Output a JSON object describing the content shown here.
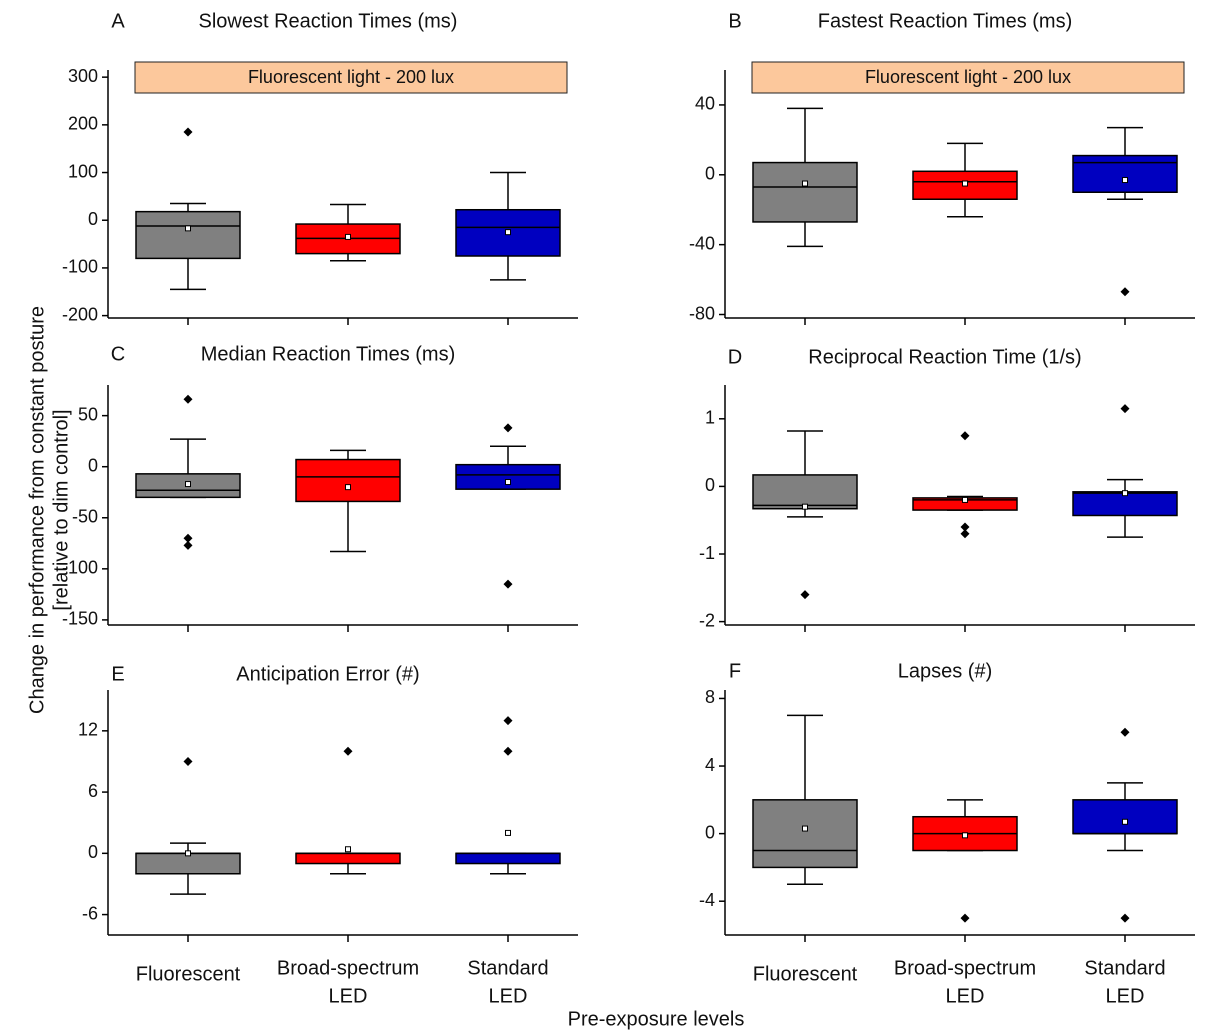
{
  "chart_data": [
    {
      "type": "box",
      "panel": "A",
      "title": "Slowest Reaction Times (ms)",
      "annotation": "Fluorescent light - 200 lux",
      "ylim": [
        -205,
        315
      ],
      "yticks": [
        300,
        200,
        100,
        0,
        -100,
        -200
      ],
      "boxes": [
        {
          "color": "#808080",
          "min": -145,
          "q1": -80,
          "median": -12,
          "q3": 18,
          "max": 35,
          "mean": -17,
          "outliers": [
            185
          ]
        },
        {
          "color": "#ff0000",
          "min": -85,
          "q1": -70,
          "median": -38,
          "q3": -8,
          "max": 33,
          "mean": -35,
          "outliers": []
        },
        {
          "color": "#0000c0",
          "min": -125,
          "q1": -75,
          "median": -15,
          "q3": 22,
          "max": 100,
          "mean": -25,
          "outliers": []
        }
      ]
    },
    {
      "type": "box",
      "panel": "B",
      "title": "Fastest Reaction Times (ms)",
      "annotation": "Fluorescent light - 200 lux",
      "ylim": [
        -82,
        60
      ],
      "yticks": [
        40,
        0,
        -40,
        -80
      ],
      "boxes": [
        {
          "color": "#808080",
          "min": -41,
          "q1": -27,
          "median": -7,
          "q3": 7,
          "max": 38,
          "mean": -5,
          "outliers": []
        },
        {
          "color": "#ff0000",
          "min": -24,
          "q1": -14,
          "median": -4,
          "q3": 2,
          "max": 18,
          "mean": -5,
          "outliers": []
        },
        {
          "color": "#0000c0",
          "min": -14,
          "q1": -10,
          "median": 7,
          "q3": 11,
          "max": 27,
          "mean": -3,
          "outliers": [
            -67
          ]
        }
      ]
    },
    {
      "type": "box",
      "panel": "C",
      "title": "Median Reaction Times (ms)",
      "ylim": [
        -155,
        80
      ],
      "yticks": [
        50,
        0,
        -50,
        -100,
        -150
      ],
      "boxes": [
        {
          "color": "#808080",
          "min": -30,
          "q1": -30,
          "median": -23,
          "q3": -7,
          "max": 27,
          "mean": -17,
          "outliers": [
            66,
            -70,
            -77
          ]
        },
        {
          "color": "#ff0000",
          "min": -83,
          "q1": -34,
          "median": -10,
          "q3": 7,
          "max": 16,
          "mean": -20,
          "outliers": []
        },
        {
          "color": "#0000c0",
          "min": -22,
          "q1": -22,
          "median": -8,
          "q3": 2,
          "max": 20,
          "mean": -15,
          "outliers": [
            38,
            -115
          ]
        }
      ]
    },
    {
      "type": "box",
      "panel": "D",
      "title": "Reciprocal Reaction Time (1/s)",
      "ylim": [
        -2.05,
        1.5
      ],
      "yticks": [
        1,
        0,
        -1,
        -2
      ],
      "boxes": [
        {
          "color": "#808080",
          "min": -0.45,
          "q1": -0.33,
          "median": -0.28,
          "q3": 0.17,
          "max": 0.82,
          "mean": -0.3,
          "outliers": [
            -1.6
          ]
        },
        {
          "color": "#ff0000",
          "min": -0.35,
          "q1": -0.35,
          "median": -0.2,
          "q3": -0.17,
          "max": -0.15,
          "mean": -0.2,
          "outliers": [
            0.75,
            -0.6,
            -0.7
          ]
        },
        {
          "color": "#0000c0",
          "min": -0.75,
          "q1": -0.43,
          "median": -0.1,
          "q3": -0.08,
          "max": 0.1,
          "mean": -0.1,
          "outliers": [
            1.15
          ]
        }
      ]
    },
    {
      "type": "box",
      "panel": "E",
      "title": "Anticipation Error (#)",
      "ylim": [
        -8,
        16
      ],
      "yticks": [
        12,
        6,
        0,
        -6
      ],
      "categories": [
        [
          "Fluorescent"
        ],
        [
          "Broad-spectrum",
          "LED"
        ],
        [
          "Standard",
          "LED"
        ]
      ],
      "boxes": [
        {
          "color": "#808080",
          "min": -4,
          "q1": -2,
          "median": 0,
          "q3": 0,
          "max": 1,
          "mean": 0,
          "outliers": [
            9
          ]
        },
        {
          "color": "#ff0000",
          "min": -2,
          "q1": -1,
          "median": 0,
          "q3": 0,
          "max": 0,
          "mean": 0.4,
          "outliers": [
            10
          ]
        },
        {
          "color": "#0000c0",
          "min": -2,
          "q1": -1,
          "median": 0,
          "q3": 0,
          "max": 0,
          "mean": 2,
          "outliers": [
            13,
            10
          ]
        }
      ]
    },
    {
      "type": "box",
      "panel": "F",
      "title": "Lapses (#)",
      "ylim": [
        -6,
        8.5
      ],
      "yticks": [
        8,
        4,
        0,
        -4
      ],
      "categories": [
        [
          "Fluorescent"
        ],
        [
          "Broad-spectrum",
          "LED"
        ],
        [
          "Standard",
          "LED"
        ]
      ],
      "boxes": [
        {
          "color": "#808080",
          "min": -3,
          "q1": -2,
          "median": -1,
          "q3": 2,
          "max": 7,
          "mean": 0.3,
          "outliers": []
        },
        {
          "color": "#ff0000",
          "min": -1,
          "q1": -1,
          "median": 0,
          "q3": 1,
          "max": 2,
          "mean": -0.1,
          "outliers": [
            -5
          ]
        },
        {
          "color": "#0000c0",
          "min": -1,
          "q1": 0,
          "median": 0,
          "q3": 2,
          "max": 3,
          "mean": 0.7,
          "outliers": [
            6,
            -5
          ]
        }
      ]
    }
  ],
  "ylabel": [
    "Change in performance from constant posture",
    "[relative to dim control]"
  ],
  "xlabel": "Pre-exposure levels"
}
